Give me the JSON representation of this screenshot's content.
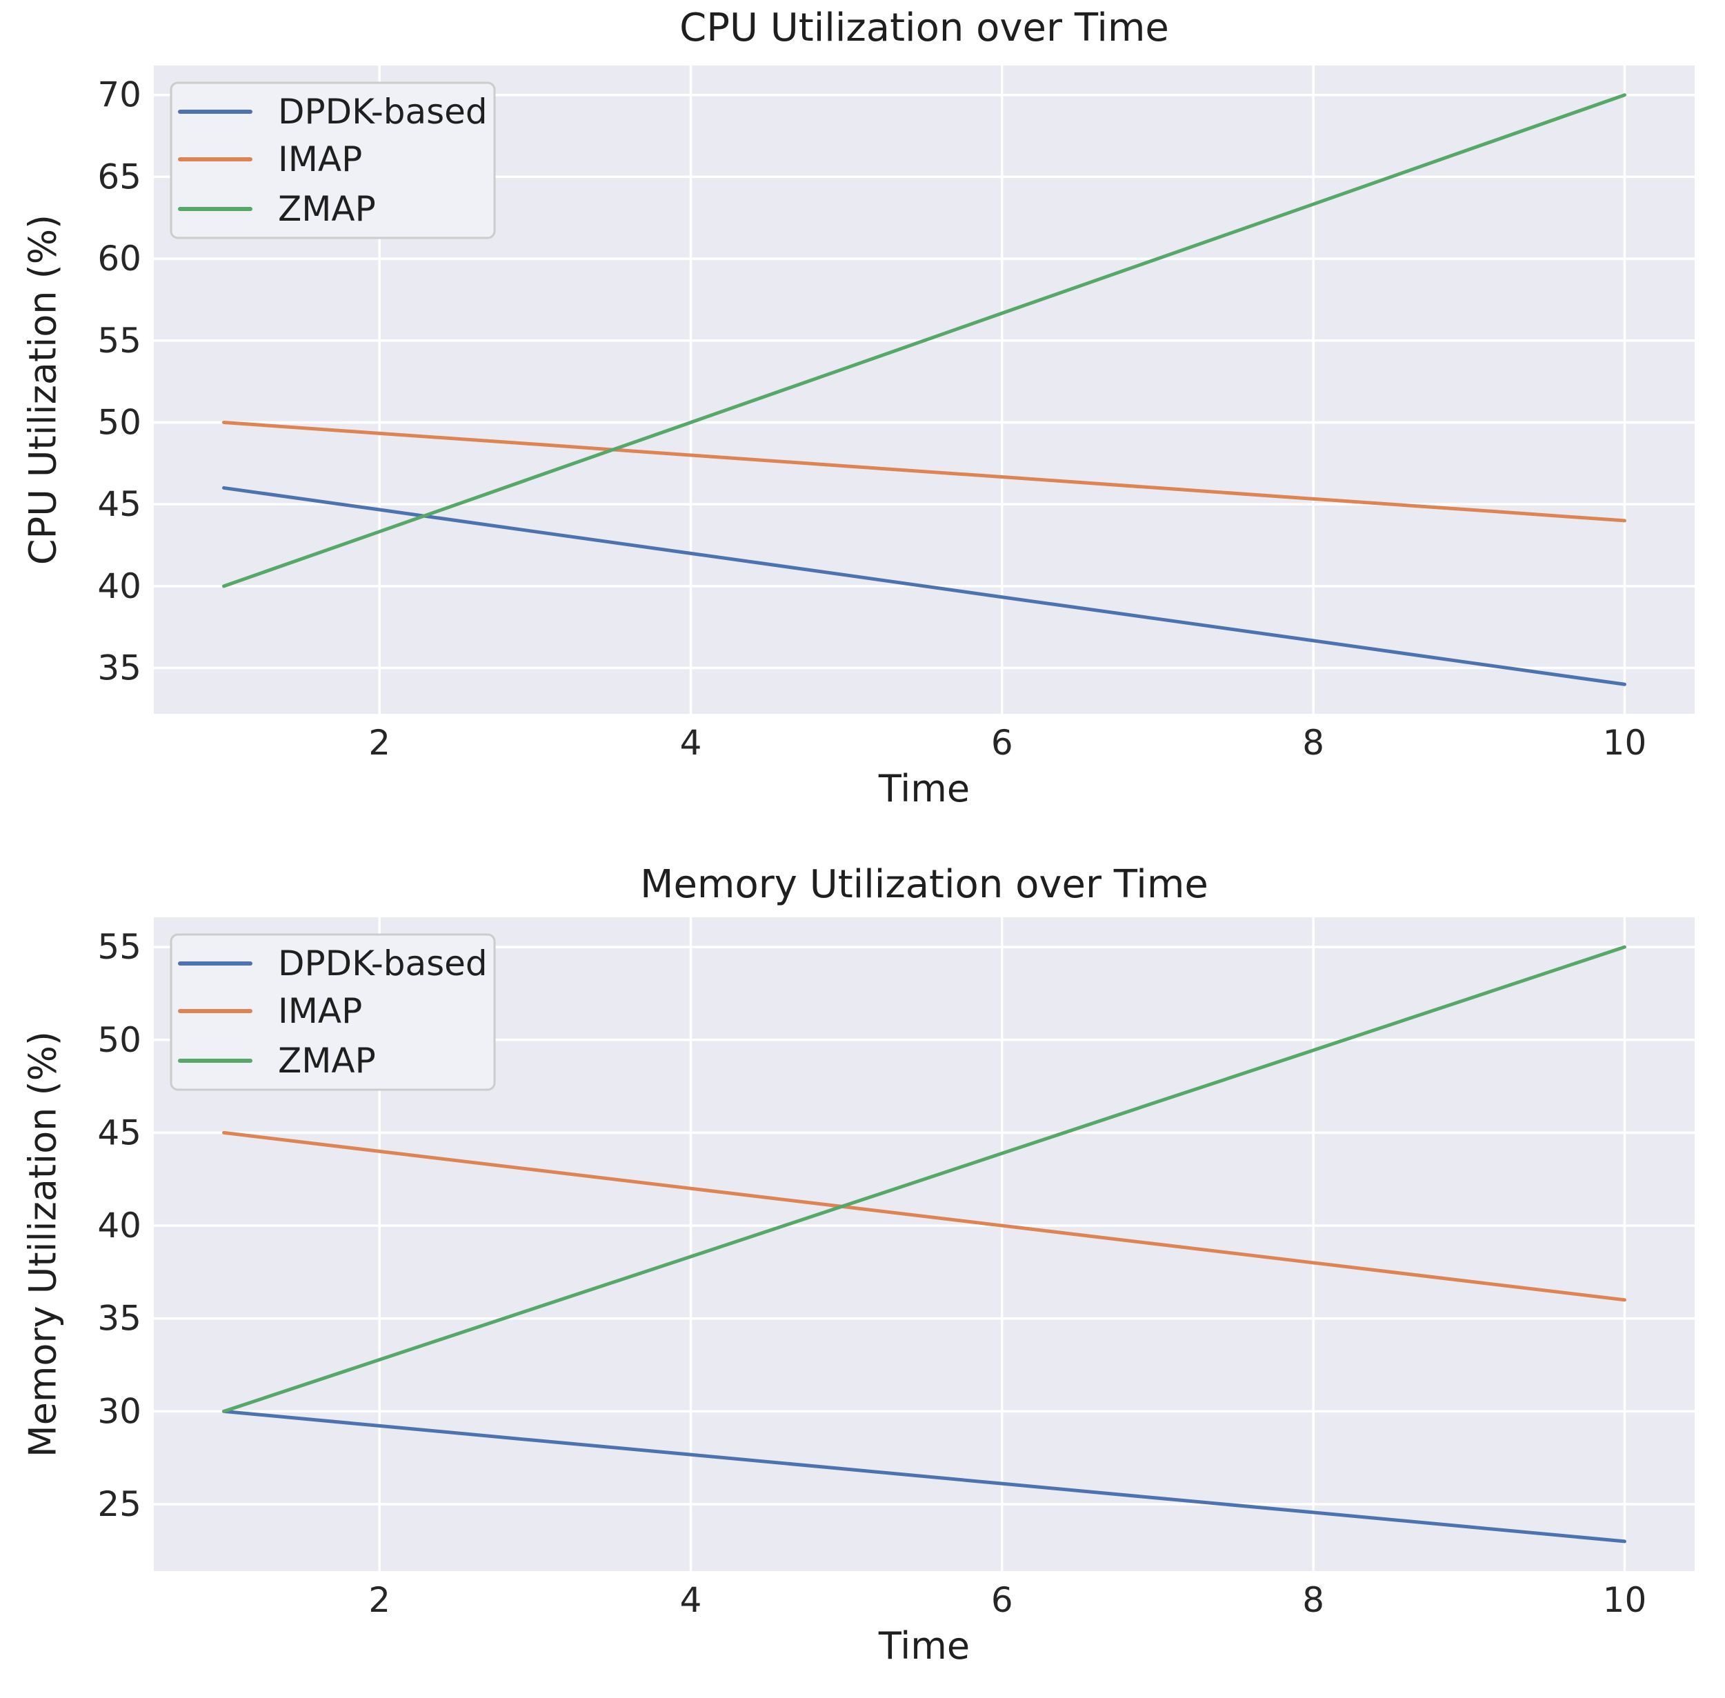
{
  "figure": {
    "background": "#ffffff",
    "plot_background": "#eaeaf2",
    "gridline_color": "#ffffff",
    "text_color": "#262626",
    "legend_border_color": "#cccccc",
    "legend_background": "#f0f1f7"
  },
  "palette": {
    "blue": "#4c72b0",
    "orange": "#dd8452",
    "green": "#55a868"
  },
  "chart_data": [
    {
      "type": "line",
      "title": "CPU Utilization over Time",
      "xlabel": "Time",
      "ylabel": "CPU Utilization (%)",
      "x": [
        1,
        2,
        3,
        4,
        5,
        6,
        7,
        8,
        9,
        10
      ],
      "xticks": [
        2,
        4,
        6,
        8,
        10
      ],
      "yticks": [
        35,
        40,
        45,
        50,
        55,
        60,
        65,
        70
      ],
      "xlim": [
        0.55,
        10.45
      ],
      "ylim": [
        32.2,
        71.8
      ],
      "grid": true,
      "legend_position": "upper left",
      "series": [
        {
          "name": "DPDK-based",
          "color": "#4c72b0",
          "values": [
            46,
            44.67,
            43.33,
            42,
            40.67,
            39.33,
            38,
            36.67,
            35.33,
            34
          ]
        },
        {
          "name": "IMAP",
          "color": "#dd8452",
          "values": [
            50,
            49.33,
            48.67,
            48,
            47.33,
            46.67,
            46,
            45.33,
            44.67,
            44
          ]
        },
        {
          "name": "ZMAP",
          "color": "#55a868",
          "values": [
            40,
            43.33,
            46.67,
            50,
            53.33,
            56.67,
            60,
            63.33,
            66.67,
            70
          ]
        }
      ]
    },
    {
      "type": "line",
      "title": "Memory Utilization over Time",
      "xlabel": "Time",
      "ylabel": "Memory Utilization (%)",
      "x": [
        1,
        2,
        3,
        4,
        5,
        6,
        7,
        8,
        9,
        10
      ],
      "xticks": [
        2,
        4,
        6,
        8,
        10
      ],
      "yticks": [
        25,
        30,
        35,
        40,
        45,
        50,
        55
      ],
      "xlim": [
        0.55,
        10.45
      ],
      "ylim": [
        21.4,
        56.6
      ],
      "grid": true,
      "legend_position": "upper left",
      "series": [
        {
          "name": "DPDK-based",
          "color": "#4c72b0",
          "values": [
            30,
            29.22,
            28.44,
            27.67,
            26.89,
            26.11,
            25.33,
            24.56,
            23.78,
            23
          ]
        },
        {
          "name": "IMAP",
          "color": "#dd8452",
          "values": [
            45,
            44,
            43,
            42,
            41,
            40,
            39,
            38,
            37,
            36
          ]
        },
        {
          "name": "ZMAP",
          "color": "#55a868",
          "values": [
            30,
            32.78,
            35.56,
            38.33,
            41.11,
            43.89,
            46.67,
            49.44,
            52.22,
            55
          ]
        }
      ]
    }
  ]
}
